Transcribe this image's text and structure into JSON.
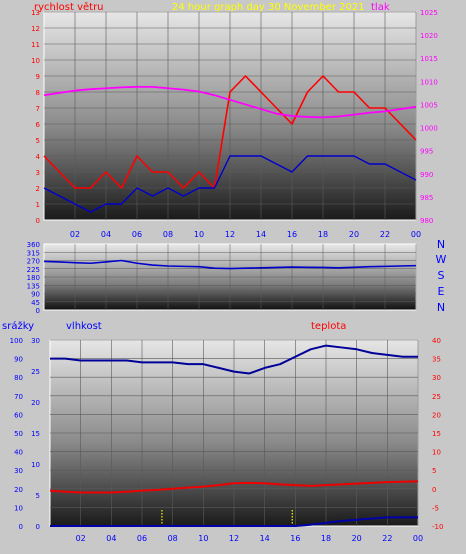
{
  "header": {
    "wind_label": "rychlost větru",
    "graph_title": "24 hour graph day   30 November 2021",
    "pressure_label": "tlak"
  },
  "bottom_header": {
    "precip_label": "srážky",
    "humidity_label": "vlhkost",
    "temperature_label": "teplota"
  },
  "direction_labels": [
    "N",
    "W",
    "S",
    "E",
    "N"
  ],
  "colors": {
    "wind_gust": "#ff0000",
    "wind_avg": "#0000cc",
    "pressure": "#ff00ff",
    "humidity": "#000099",
    "temperature": "#ee0000",
    "precip": "#0000aa",
    "rain_marker": "#ffff00",
    "header_title": "#ffff00",
    "label_blue": "#0000ff",
    "label_red": "#ff0000",
    "label_magenta": "#ff00ff"
  },
  "chart_data": [
    {
      "type": "line",
      "name": "wind-pressure",
      "x_ticks": [
        "02",
        "04",
        "06",
        "08",
        "10",
        "12",
        "14",
        "16",
        "18",
        "20",
        "22",
        "00"
      ],
      "y_left_ticks": [
        0,
        1,
        2,
        3,
        4,
        5,
        6,
        7,
        8,
        9,
        10,
        11,
        12,
        13
      ],
      "y_right_ticks": [
        980,
        985,
        990,
        995,
        1000,
        1005,
        1010,
        1015,
        1020,
        1025
      ],
      "ylim_left": [
        0,
        13
      ],
      "ylim_right": [
        980,
        1025
      ],
      "x": [
        0,
        1,
        2,
        3,
        4,
        5,
        6,
        7,
        8,
        9,
        10,
        11,
        12,
        13,
        14,
        15,
        16,
        17,
        18,
        19,
        20,
        21,
        22,
        23,
        24
      ],
      "series": [
        {
          "key": "gust",
          "axis": "left",
          "values": [
            4,
            3,
            2,
            2,
            3,
            2,
            4,
            3,
            3,
            2,
            3,
            2,
            8,
            9,
            8,
            7,
            6,
            8,
            9,
            8,
            8,
            7,
            7,
            6,
            5
          ]
        },
        {
          "key": "avg",
          "axis": "left",
          "values": [
            2,
            1.5,
            1,
            0.5,
            1,
            1,
            2,
            1.5,
            2,
            1.5,
            2,
            2,
            4,
            4,
            4,
            3.5,
            3,
            4,
            4,
            4,
            4,
            3.5,
            3.5,
            3,
            2.5
          ]
        },
        {
          "key": "pressure",
          "axis": "right",
          "values": [
            1007,
            1007.5,
            1008,
            1008.3,
            1008.5,
            1008.7,
            1008.8,
            1008.8,
            1008.5,
            1008.2,
            1007.8,
            1007,
            1006,
            1005,
            1004,
            1003,
            1002.5,
            1002.3,
            1002.2,
            1002.4,
            1002.8,
            1003.2,
            1003.5,
            1004,
            1004.5
          ]
        }
      ]
    },
    {
      "type": "line",
      "name": "wind-direction",
      "x_ticks": [
        "02",
        "04",
        "06",
        "08",
        "10",
        "12",
        "14",
        "16",
        "18",
        "20",
        "22",
        "00"
      ],
      "y_ticks": [
        0,
        45,
        90,
        135,
        180,
        225,
        270,
        315,
        360
      ],
      "ylim": [
        0,
        360
      ],
      "x": [
        0,
        1,
        2,
        3,
        4,
        5,
        6,
        7,
        8,
        9,
        10,
        11,
        12,
        13,
        14,
        15,
        16,
        17,
        18,
        19,
        20,
        21,
        22,
        23,
        24
      ],
      "series": [
        {
          "key": "direction",
          "values": [
            265,
            262,
            258,
            255,
            262,
            270,
            255,
            245,
            240,
            238,
            236,
            228,
            226,
            228,
            230,
            232,
            234,
            233,
            232,
            230,
            233,
            236,
            238,
            240,
            242
          ]
        }
      ]
    },
    {
      "type": "line",
      "name": "humidity-temperature-precip",
      "x_ticks": [
        "02",
        "04",
        "06",
        "08",
        "10",
        "12",
        "14",
        "16",
        "18",
        "20",
        "22",
        "00"
      ],
      "y_left_ticks": [
        0,
        10,
        20,
        30,
        40,
        50,
        60,
        70,
        80,
        90,
        100
      ],
      "y_precip_ticks": [
        0,
        5,
        10,
        15,
        20,
        25,
        30
      ],
      "y_right_ticks": [
        -10,
        -5,
        0,
        5,
        10,
        15,
        20,
        25,
        30,
        35,
        40
      ],
      "ylim_left": [
        0,
        100
      ],
      "ylim_precip": [
        0,
        30
      ],
      "ylim_right": [
        -10,
        40
      ],
      "x": [
        0,
        1,
        2,
        3,
        4,
        5,
        6,
        7,
        8,
        9,
        10,
        11,
        12,
        13,
        14,
        15,
        16,
        17,
        18,
        19,
        20,
        21,
        22,
        23,
        24
      ],
      "series": [
        {
          "key": "humidity",
          "axis": "left",
          "values": [
            90,
            90,
            89,
            89,
            89,
            89,
            88,
            88,
            88,
            87,
            87,
            85,
            83,
            82,
            85,
            87,
            91,
            95,
            97,
            96,
            95,
            93,
            92,
            91,
            91
          ]
        },
        {
          "key": "temperature",
          "axis": "right",
          "values": [
            -0.5,
            -0.8,
            -1,
            -1,
            -1,
            -0.8,
            -0.5,
            -0.3,
            0,
            0.3,
            0.6,
            1,
            1.5,
            1.6,
            1.5,
            1.2,
            1,
            0.8,
            1,
            1.2,
            1.4,
            1.6,
            1.8,
            1.9,
            2
          ]
        },
        {
          "key": "precip",
          "axis": "precip",
          "values": [
            0,
            0,
            0,
            0,
            0,
            0,
            0,
            0,
            0,
            0,
            0,
            0,
            0,
            0,
            0,
            0,
            0,
            0.2,
            0.5,
            0.8,
            1,
            1.2,
            1.4,
            1.4,
            1.4
          ]
        }
      ],
      "rain_markers_x": [
        7.3,
        15.8
      ]
    }
  ]
}
